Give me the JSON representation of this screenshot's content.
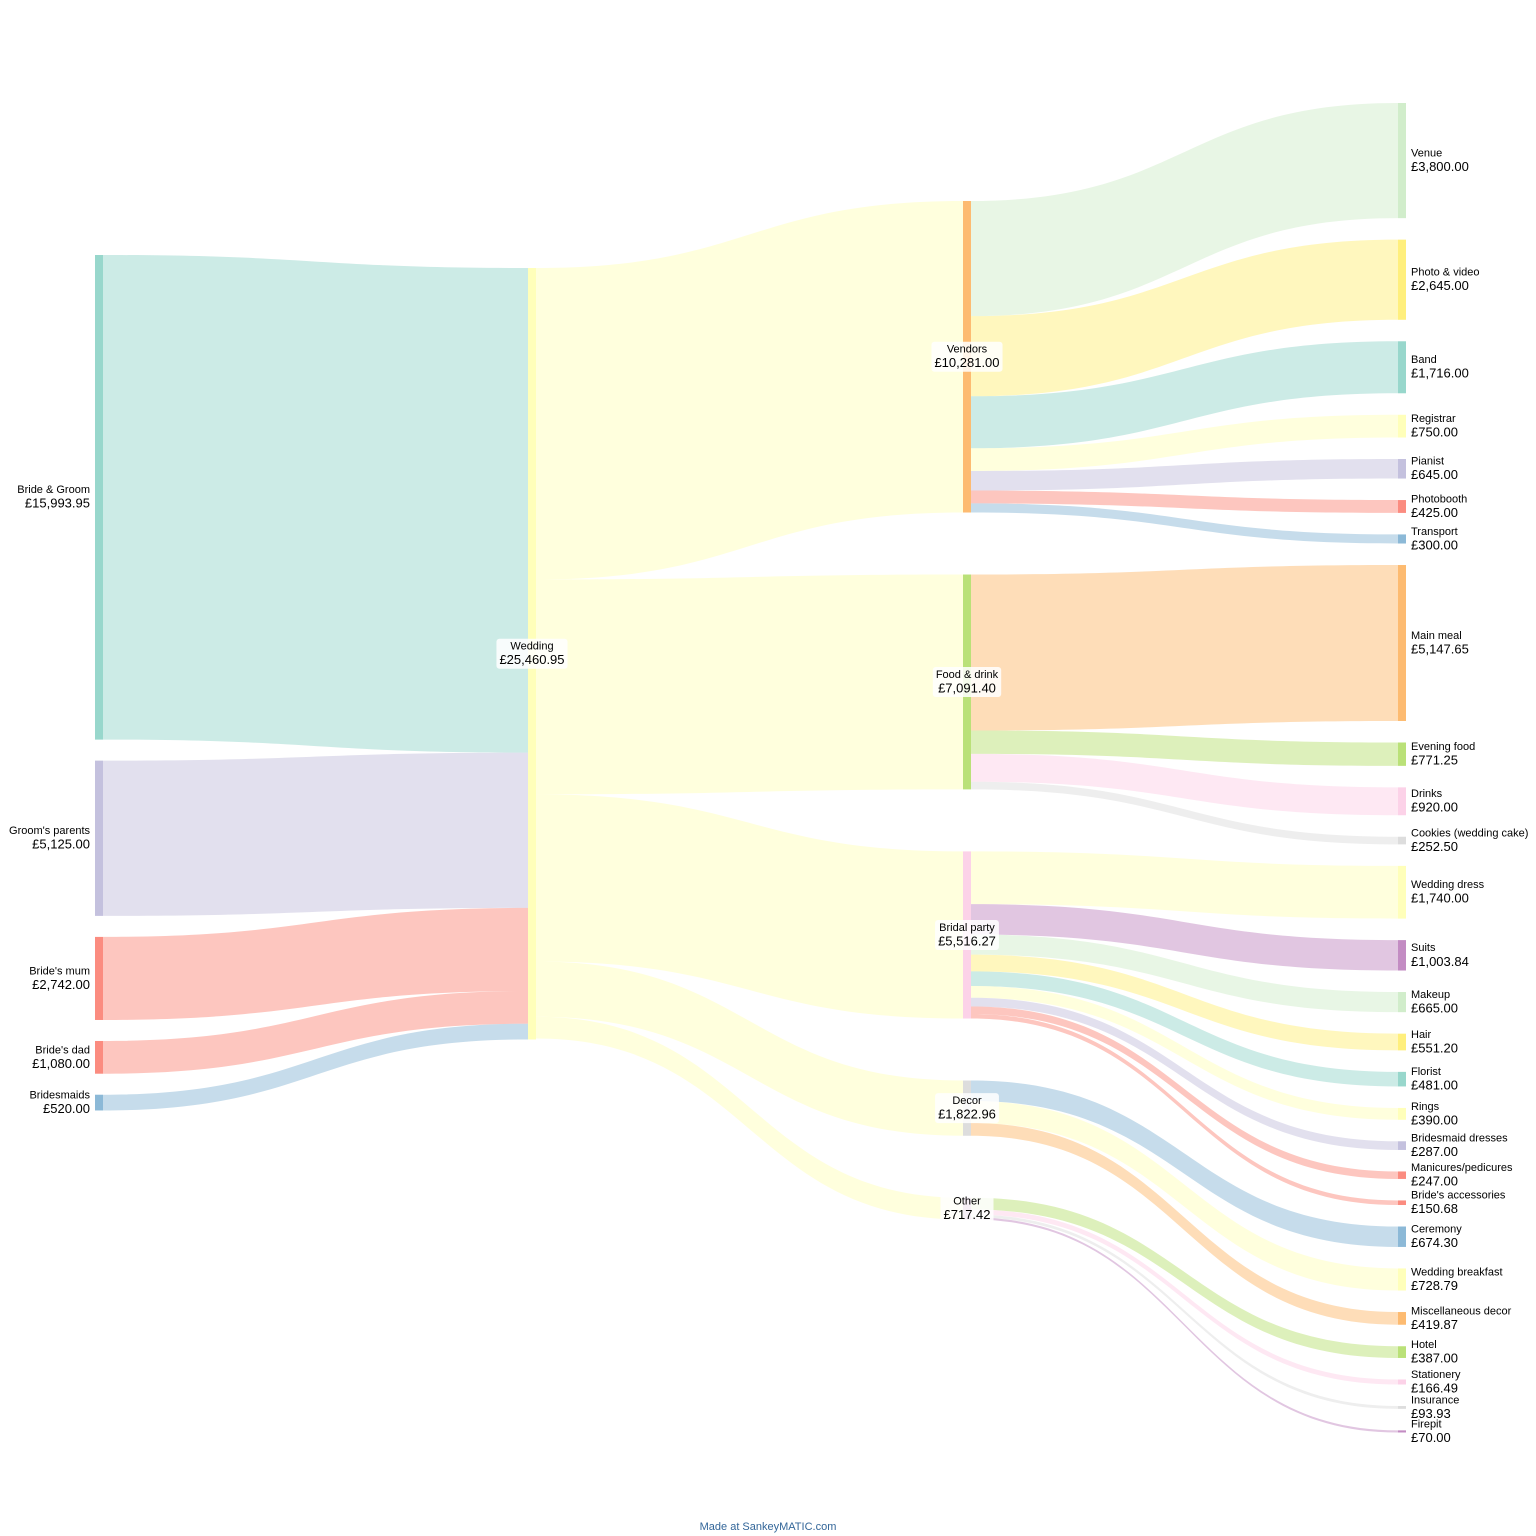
{
  "chart_data": {
    "type": "sankey",
    "footer": "Made at SankeyMATIC.com",
    "nodes": [
      {
        "name": "Bride & Groom",
        "value": 15993.95,
        "value_label": "£15,993.95",
        "color": "#8dd3c7"
      },
      {
        "name": "Groom's parents",
        "value": 5125.0,
        "value_label": "£5,125.00",
        "color": "#bebada"
      },
      {
        "name": "Bride's mum",
        "value": 2742.0,
        "value_label": "£2,742.00",
        "color": "#fb8072"
      },
      {
        "name": "Bride's dad",
        "value": 1080.0,
        "value_label": "£1,080.00",
        "color": "#fb8072"
      },
      {
        "name": "Bridesmaids",
        "value": 520.0,
        "value_label": "£520.00",
        "color": "#80b1d3"
      },
      {
        "name": "Wedding",
        "value": 25460.95,
        "value_label": "£25,460.95",
        "color": "#ffffb3"
      },
      {
        "name": "Vendors",
        "value": 10281.0,
        "value_label": "£10,281.00",
        "color": "#fdb462"
      },
      {
        "name": "Food & drink",
        "value": 7091.4,
        "value_label": "£7,091.40",
        "color": "#b3de69"
      },
      {
        "name": "Bridal party",
        "value": 5516.27,
        "value_label": "£5,516.27",
        "color": "#fccde5"
      },
      {
        "name": "Decor",
        "value": 1822.96,
        "value_label": "£1,822.96",
        "color": "#d9d9d9"
      },
      {
        "name": "Other",
        "value": 717.42,
        "value_label": "£717.42",
        "color": "#bc80bd"
      },
      {
        "name": "Venue",
        "value": 3800.0,
        "value_label": "£3,800.00",
        "color": "#ccebc5"
      },
      {
        "name": "Photo & video",
        "value": 2645.0,
        "value_label": "£2,645.00",
        "color": "#ffed6f"
      },
      {
        "name": "Band",
        "value": 1716.0,
        "value_label": "£1,716.00",
        "color": "#8dd3c7"
      },
      {
        "name": "Registrar",
        "value": 750.0,
        "value_label": "£750.00",
        "color": "#ffffb3"
      },
      {
        "name": "Pianist",
        "value": 645.0,
        "value_label": "£645.00",
        "color": "#bebada"
      },
      {
        "name": "Photobooth",
        "value": 425.0,
        "value_label": "£425.00",
        "color": "#fb8072"
      },
      {
        "name": "Transport",
        "value": 300.0,
        "value_label": "£300.00",
        "color": "#80b1d3"
      },
      {
        "name": "Main meal",
        "value": 5147.65,
        "value_label": "£5,147.65",
        "color": "#fdb462"
      },
      {
        "name": "Evening food",
        "value": 771.25,
        "value_label": "£771.25",
        "color": "#b3de69"
      },
      {
        "name": "Drinks",
        "value": 920.0,
        "value_label": "£920.00",
        "color": "#fccde5"
      },
      {
        "name": "Cookies (wedding cake)",
        "value": 252.5,
        "value_label": "£252.50",
        "color": "#d9d9d9"
      },
      {
        "name": "Wedding dress",
        "value": 1740.0,
        "value_label": "£1,740.00",
        "color": "#ffffb3"
      },
      {
        "name": "Suits",
        "value": 1003.84,
        "value_label": "£1,003.84",
        "color": "#bc80bd"
      },
      {
        "name": "Makeup",
        "value": 665.0,
        "value_label": "£665.00",
        "color": "#ccebc5"
      },
      {
        "name": "Hair",
        "value": 551.2,
        "value_label": "£551.20",
        "color": "#ffed6f"
      },
      {
        "name": "Florist",
        "value": 481.0,
        "value_label": "£481.00",
        "color": "#8dd3c7"
      },
      {
        "name": "Rings",
        "value": 390.0,
        "value_label": "£390.00",
        "color": "#ffffb3"
      },
      {
        "name": "Bridesmaid dresses",
        "value": 287.0,
        "value_label": "£287.00",
        "color": "#bebada"
      },
      {
        "name": "Manicures/pedicures",
        "value": 247.0,
        "value_label": "£247.00",
        "color": "#fb8072"
      },
      {
        "name": "Bride's accessories",
        "value": 150.68,
        "value_label": "£150.68",
        "color": "#fb8072"
      },
      {
        "name": "Ceremony",
        "value": 674.3,
        "value_label": "£674.30",
        "color": "#80b1d3"
      },
      {
        "name": "Wedding breakfast",
        "value": 728.79,
        "value_label": "£728.79",
        "color": "#ffffb3"
      },
      {
        "name": "Miscellaneous decor",
        "value": 419.87,
        "value_label": "£419.87",
        "color": "#fdb462"
      },
      {
        "name": "Hotel",
        "value": 387.0,
        "value_label": "£387.00",
        "color": "#b3de69"
      },
      {
        "name": "Stationery",
        "value": 166.49,
        "value_label": "£166.49",
        "color": "#fccde5"
      },
      {
        "name": "Insurance",
        "value": 93.93,
        "value_label": "£93.93",
        "color": "#d9d9d9"
      },
      {
        "name": "Firepit",
        "value": 70.0,
        "value_label": "£70.00",
        "color": "#bc80bd"
      }
    ],
    "links": [
      {
        "source": "Bride & Groom",
        "target": "Wedding",
        "value": 15993.95
      },
      {
        "source": "Groom's parents",
        "target": "Wedding",
        "value": 5125.0
      },
      {
        "source": "Bride's mum",
        "target": "Wedding",
        "value": 2742.0
      },
      {
        "source": "Bride's dad",
        "target": "Wedding",
        "value": 1080.0
      },
      {
        "source": "Bridesmaids",
        "target": "Wedding",
        "value": 520.0
      },
      {
        "source": "Wedding",
        "target": "Vendors",
        "value": 10281.0
      },
      {
        "source": "Wedding",
        "target": "Food & drink",
        "value": 7091.4
      },
      {
        "source": "Wedding",
        "target": "Bridal party",
        "value": 5516.27
      },
      {
        "source": "Wedding",
        "target": "Decor",
        "value": 1822.96
      },
      {
        "source": "Wedding",
        "target": "Other",
        "value": 717.42
      },
      {
        "source": "Vendors",
        "target": "Venue",
        "value": 3800.0
      },
      {
        "source": "Vendors",
        "target": "Photo & video",
        "value": 2645.0
      },
      {
        "source": "Vendors",
        "target": "Band",
        "value": 1716.0
      },
      {
        "source": "Vendors",
        "target": "Registrar",
        "value": 750.0
      },
      {
        "source": "Vendors",
        "target": "Pianist",
        "value": 645.0
      },
      {
        "source": "Vendors",
        "target": "Photobooth",
        "value": 425.0
      },
      {
        "source": "Vendors",
        "target": "Transport",
        "value": 300.0
      },
      {
        "source": "Food & drink",
        "target": "Main meal",
        "value": 5147.65
      },
      {
        "source": "Food & drink",
        "target": "Evening food",
        "value": 771.25
      },
      {
        "source": "Food & drink",
        "target": "Drinks",
        "value": 920.0
      },
      {
        "source": "Food & drink",
        "target": "Cookies (wedding cake)",
        "value": 252.5
      },
      {
        "source": "Bridal party",
        "target": "Wedding dress",
        "value": 1740.0
      },
      {
        "source": "Bridal party",
        "target": "Suits",
        "value": 1003.84
      },
      {
        "source": "Bridal party",
        "target": "Makeup",
        "value": 665.0
      },
      {
        "source": "Bridal party",
        "target": "Hair",
        "value": 551.2
      },
      {
        "source": "Bridal party",
        "target": "Florist",
        "value": 481.0
      },
      {
        "source": "Bridal party",
        "target": "Rings",
        "value": 390.0
      },
      {
        "source": "Bridal party",
        "target": "Bridesmaid dresses",
        "value": 287.0
      },
      {
        "source": "Bridal party",
        "target": "Manicures/pedicures",
        "value": 247.0
      },
      {
        "source": "Bridal party",
        "target": "Bride's accessories",
        "value": 150.68
      },
      {
        "source": "Decor",
        "target": "Ceremony",
        "value": 674.3
      },
      {
        "source": "Decor",
        "target": "Wedding breakfast",
        "value": 728.79
      },
      {
        "source": "Decor",
        "target": "Miscellaneous decor",
        "value": 419.87
      },
      {
        "source": "Other",
        "target": "Hotel",
        "value": 387.0
      },
      {
        "source": "Other",
        "target": "Stationery",
        "value": 166.49
      },
      {
        "source": "Other",
        "target": "Insurance",
        "value": 93.93
      },
      {
        "source": "Other",
        "target": "Firepit",
        "value": 70.0
      }
    ]
  }
}
